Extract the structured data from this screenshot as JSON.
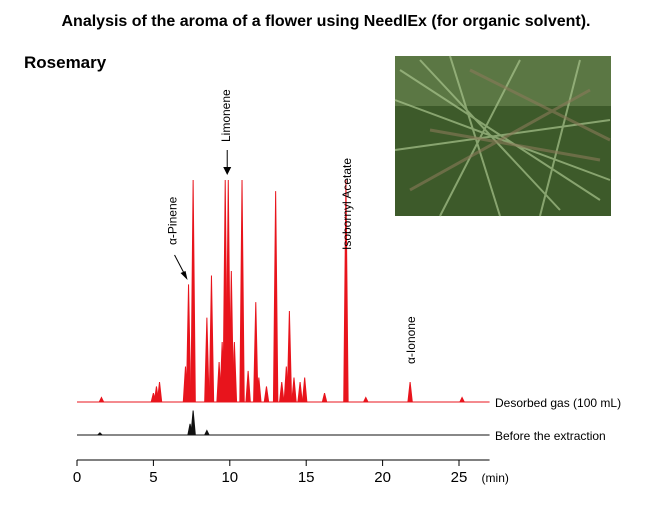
{
  "chart_data": {
    "type": "chromatogram",
    "title": "Analysis of the aroma of a flower using NeedlEx (for organic solvent).",
    "subtitle": "Rosemary",
    "xlabel": "(min)",
    "xlim": [
      0,
      27
    ],
    "xticks": [
      0,
      5,
      10,
      15,
      20,
      25
    ],
    "ylim": [
      0,
      100
    ],
    "series": [
      {
        "name": "Desorbed gas (100 mL)",
        "color": "#e8141c",
        "x": [
          1.6,
          5.0,
          5.2,
          5.4,
          7.1,
          7.3,
          7.6,
          8.5,
          8.8,
          9.3,
          9.5,
          9.7,
          9.9,
          10.1,
          10.3,
          10.8,
          11.2,
          11.7,
          11.9,
          12.4,
          13.0,
          13.4,
          13.7,
          13.9,
          14.2,
          14.6,
          14.9,
          16.2,
          17.6,
          18.9,
          21.8,
          25.2
        ],
        "values": [
          2,
          4,
          7,
          9,
          16,
          53,
          100,
          38,
          57,
          18,
          27,
          100,
          100,
          59,
          27,
          100,
          14,
          45,
          11,
          7,
          95,
          9,
          16,
          41,
          11,
          9,
          11,
          4,
          100,
          2,
          9,
          2
        ]
      },
      {
        "name": "Before the extraction",
        "color": "#111111",
        "x": [
          1.5,
          7.4,
          7.6,
          8.5
        ],
        "values": [
          1,
          5,
          11,
          2
        ]
      }
    ],
    "annotations": [
      "α-Pinene",
      "Limonene",
      "Isobornyl Acetate",
      "α-Ionone"
    ]
  }
}
